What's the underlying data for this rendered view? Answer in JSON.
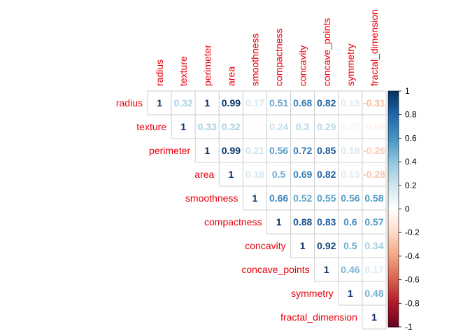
{
  "chart_data": {
    "type": "heatmap",
    "variables": [
      "radius",
      "texture",
      "perimeter",
      "area",
      "smoothness",
      "compactness",
      "concavity",
      "concave_points",
      "symmetry",
      "fractal_dimension"
    ],
    "matrix": [
      [
        1,
        0.32,
        1,
        0.99,
        0.17,
        0.51,
        0.68,
        0.82,
        0.15,
        -0.31
      ],
      [
        null,
        1,
        0.33,
        0.32,
        -0.02,
        0.24,
        0.3,
        0.29,
        0.07,
        -0.08
      ],
      [
        null,
        null,
        1,
        0.99,
        0.21,
        0.56,
        0.72,
        0.85,
        0.18,
        -0.26
      ],
      [
        null,
        null,
        null,
        1,
        0.18,
        0.5,
        0.69,
        0.82,
        0.15,
        -0.28
      ],
      [
        null,
        null,
        null,
        null,
        1,
        0.66,
        0.52,
        0.55,
        0.56,
        0.58
      ],
      [
        null,
        null,
        null,
        null,
        null,
        1,
        0.88,
        0.83,
        0.6,
        0.57
      ],
      [
        null,
        null,
        null,
        null,
        null,
        null,
        1,
        0.92,
        0.5,
        0.34
      ],
      [
        null,
        null,
        null,
        null,
        null,
        null,
        null,
        1,
        0.46,
        0.17
      ],
      [
        null,
        null,
        null,
        null,
        null,
        null,
        null,
        null,
        1,
        0.48
      ],
      [
        null,
        null,
        null,
        null,
        null,
        null,
        null,
        null,
        null,
        1
      ]
    ],
    "matrix_shape": "upper",
    "color_scale": {
      "min": -1,
      "max": 1,
      "low": "#67001f",
      "mid": "#ffffff",
      "high": "#053061"
    },
    "label_color": "#e8000b",
    "colorbar_ticks": [
      1,
      0.8,
      0.6,
      0.4,
      0.2,
      0,
      -0.2,
      -0.4,
      -0.6,
      -0.8,
      -1
    ]
  }
}
